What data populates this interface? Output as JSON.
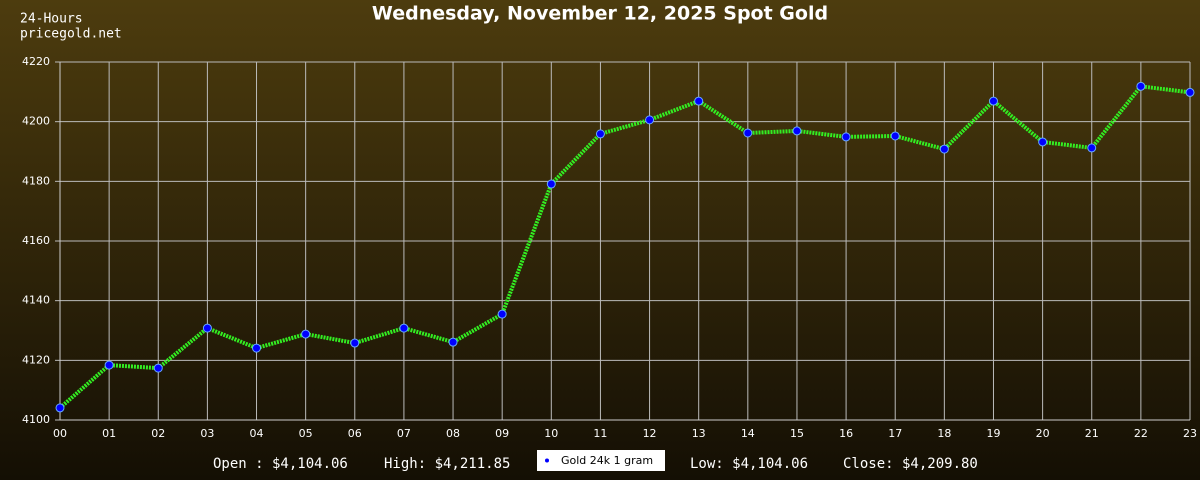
{
  "chart_data": {
    "type": "line",
    "title": "Wednesday, November 12, 2025 Spot Gold",
    "header": [
      "24-Hours",
      "pricegold.net"
    ],
    "footer": [
      "Open : $4,104.06",
      "High: $4,211.85",
      "Low: $4,104.06",
      "Close: $4,209.80"
    ],
    "categories": [
      "00",
      "01",
      "02",
      "03",
      "04",
      "05",
      "06",
      "07",
      "08",
      "09",
      "10",
      "11",
      "12",
      "13",
      "14",
      "15",
      "16",
      "17",
      "18",
      "19",
      "20",
      "21",
      "22",
      "23"
    ],
    "series": [
      {
        "name": "Gold 24k 1 gram",
        "color": "#33ee22",
        "marker_color": "#0000ff",
        "values": [
          4104.06,
          4118.4,
          4117.4,
          4130.8,
          4124.1,
          4128.8,
          4125.8,
          4130.8,
          4126.1,
          4135.5,
          4179.1,
          4195.9,
          4200.6,
          4206.9,
          4196.2,
          4196.9,
          4194.9,
          4195.2,
          4190.8,
          4206.9,
          4193.2,
          4191.2,
          4211.85,
          4209.8
        ]
      }
    ],
    "ylim": [
      4100,
      4220
    ],
    "yticks": [
      4100,
      4120,
      4140,
      4160,
      4180,
      4200,
      4220
    ],
    "grid": true
  }
}
